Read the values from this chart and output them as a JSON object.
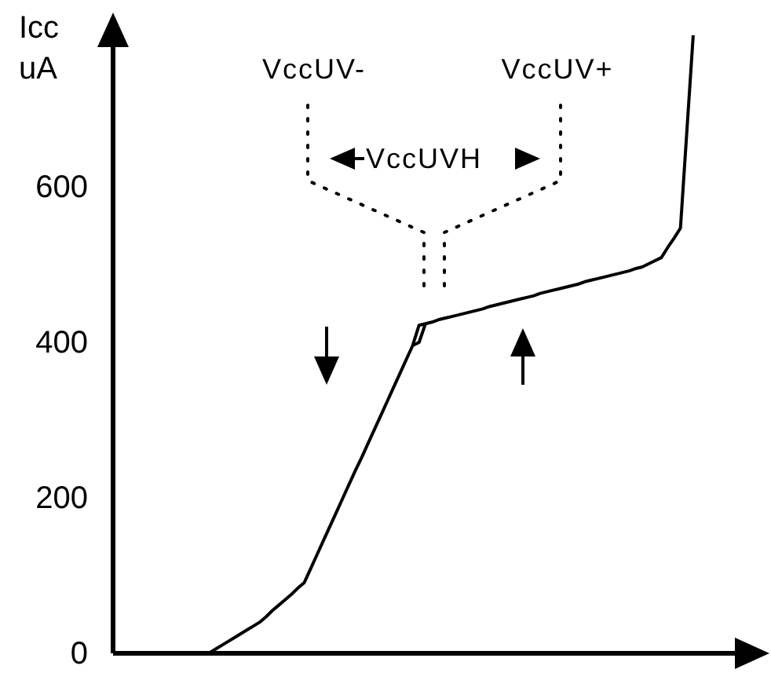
{
  "chart_data": {
    "type": "line",
    "ylabel": "Icc\nuA",
    "categories": [
      null,
      null,
      null,
      null,
      null,
      null,
      null,
      null,
      null,
      null,
      null,
      null,
      null,
      null,
      null,
      null,
      null,
      null,
      null,
      null,
      null,
      null,
      null,
      null,
      null,
      null,
      null,
      null,
      null,
      null,
      null,
      null,
      null,
      null,
      null,
      null,
      null,
      null,
      null,
      null,
      null,
      null,
      null,
      null,
      null,
      null,
      null,
      null,
      null,
      null,
      null,
      null,
      null,
      null,
      null,
      null,
      null,
      null,
      null,
      null,
      null,
      null,
      null,
      null,
      null,
      null,
      null,
      null,
      null,
      null,
      null,
      null,
      null,
      null,
      null,
      null,
      null,
      null,
      null,
      null,
      null,
      null,
      null,
      null,
      null,
      null,
      null,
      null,
      null,
      null,
      null,
      null,
      null,
      null,
      null,
      null,
      null,
      null,
      null,
      null,
      null
    ],
    "ylim": [
      0,
      800
    ],
    "yticks": [
      0,
      200,
      400,
      600
    ],
    "tick_labels": "y",
    "grid": false,
    "series": [
      {
        "color": "#000000",
        "values": [
          null,
          null,
          null,
          null,
          null,
          null,
          null,
          null,
          null,
          null,
          null,
          null,
          null,
          null,
          null,
          0,
          5,
          10,
          15,
          20,
          25,
          30,
          35,
          40,
          47,
          55,
          62,
          69,
          76,
          84,
          91,
          109,
          127,
          145,
          163,
          181,
          199,
          217,
          235,
          252,
          270,
          288,
          306,
          324,
          342,
          360,
          378,
          396,
          422,
          424,
          426,
          429,
          431,
          433,
          435,
          437,
          439,
          441,
          443,
          446,
          448,
          450,
          452,
          454,
          456,
          458,
          460,
          463,
          465,
          467,
          469,
          471,
          473,
          475,
          478,
          480,
          482,
          484,
          486,
          488,
          490,
          492,
          495,
          497,
          501,
          505,
          509,
          522,
          534,
          547,
          671,
          795,
          null,
          null,
          null,
          null,
          null,
          null,
          null,
          null,
          null
        ]
      },
      {
        "color": "#000000",
        "values": [
          null,
          null,
          null,
          null,
          null,
          null,
          null,
          null,
          null,
          null,
          null,
          null,
          null,
          null,
          null,
          null,
          null,
          null,
          null,
          null,
          null,
          null,
          null,
          null,
          null,
          null,
          null,
          null,
          null,
          null,
          null,
          null,
          null,
          null,
          null,
          null,
          null,
          null,
          null,
          null,
          null,
          null,
          null,
          null,
          null,
          null,
          null,
          396,
          400,
          424,
          null,
          null,
          null,
          null,
          null,
          null,
          null,
          null,
          null,
          null,
          null,
          null,
          null,
          null,
          null,
          null,
          null,
          null,
          null,
          null,
          null,
          null,
          null,
          null,
          null,
          null,
          null,
          null,
          null,
          null,
          null,
          null,
          null,
          null,
          null,
          null,
          null,
          null,
          null,
          null,
          null,
          null,
          null,
          null,
          null,
          null,
          null,
          null,
          null,
          null,
          null
        ]
      }
    ],
    "annotations": [
      "VccUV-",
      "VccUV+",
      "VccUVH"
    ]
  }
}
